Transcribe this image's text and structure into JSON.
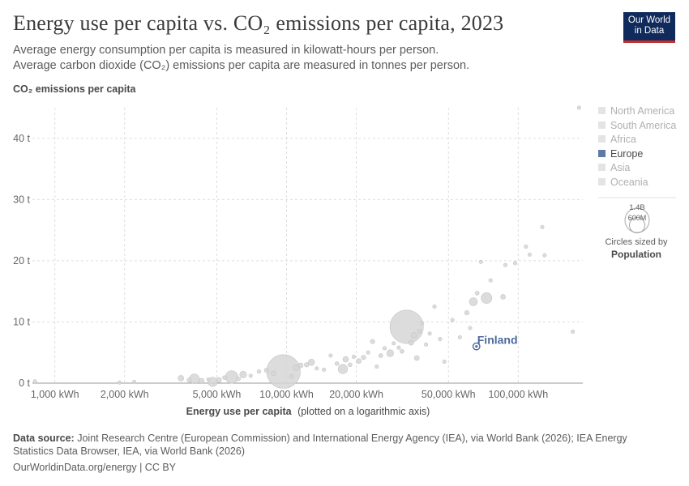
{
  "header": {
    "title": "Energy use per capita vs. CO₂ emissions per capita, 2023",
    "subtitle_line1": "Average energy consumption per capita is measured in kilowatt-hours per person.",
    "subtitle_line2": "Average carbon dioxide (CO₂) emissions per capita are measured in tonnes per person.",
    "logo_line1": "Our World",
    "logo_line2": "in Data"
  },
  "legend": {
    "regions": [
      {
        "name": "North America",
        "color": "#d0d0d0",
        "active": false
      },
      {
        "name": "South America",
        "color": "#d0d0d0",
        "active": false
      },
      {
        "name": "Africa",
        "color": "#d0d0d0",
        "active": false
      },
      {
        "name": "Europe",
        "color": "#5f7aa8",
        "active": true
      },
      {
        "name": "Asia",
        "color": "#d0d0d0",
        "active": false
      },
      {
        "name": "Oceania",
        "color": "#d0d0d0",
        "active": false
      }
    ],
    "size_large": "1.4B",
    "size_small": "600M",
    "size_caption1": "Circles sized by",
    "size_caption2": "Population"
  },
  "footer": {
    "source_label": "Data source:",
    "source_text": "Joint Research Centre (European Commission) and International Energy Agency (IEA), via World Bank (2026); IEA Energy Statistics Data Browser, IEA, via World Bank (2026)",
    "url": "OurWorldinData.org/energy | CC BY"
  },
  "chart_data": {
    "type": "scatter",
    "title": "Energy use per capita vs. CO₂ emissions per capita, 2023",
    "xlabel": "Energy use per capita",
    "xlabel_note": "(plotted on a logarithmic axis)",
    "ylabel": "CO₂ emissions per capita",
    "x_scale": "log",
    "xlim": [
      800,
      190000
    ],
    "ylim": [
      0,
      45
    ],
    "x_ticks": [
      {
        "value": 1000,
        "label": "1,000 kWh"
      },
      {
        "value": 2000,
        "label": "2,000 kWh"
      },
      {
        "value": 5000,
        "label": "5,000 kWh"
      },
      {
        "value": 10000,
        "label": "10,000 kWh"
      },
      {
        "value": 20000,
        "label": "20,000 kWh"
      },
      {
        "value": 50000,
        "label": "50,000 kWh"
      },
      {
        "value": 100000,
        "label": "100,000 kWh"
      }
    ],
    "y_ticks": [
      {
        "value": 0,
        "label": "0 t"
      },
      {
        "value": 10,
        "label": "10 t"
      },
      {
        "value": 20,
        "label": "20 t"
      },
      {
        "value": 30,
        "label": "30 t"
      },
      {
        "value": 40,
        "label": "40 t"
      }
    ],
    "grid": true,
    "highlight": {
      "name": "Finland",
      "x": 66000,
      "y": 6.0,
      "pop": 5.6,
      "color": "#4c6a9c"
    },
    "points": [
      {
        "x": 820,
        "y": 0.3,
        "pop": 10
      },
      {
        "x": 1900,
        "y": 0.1,
        "pop": 10
      },
      {
        "x": 2200,
        "y": 0.2,
        "pop": 8
      },
      {
        "x": 3500,
        "y": 0.8,
        "pop": 40
      },
      {
        "x": 3800,
        "y": 0.5,
        "pop": 25
      },
      {
        "x": 4000,
        "y": 0.7,
        "pop": 120
      },
      {
        "x": 4300,
        "y": 0.4,
        "pop": 30
      },
      {
        "x": 4600,
        "y": 0.6,
        "pop": 15
      },
      {
        "x": 4800,
        "y": 0.2,
        "pop": 110
      },
      {
        "x": 5100,
        "y": 0.5,
        "pop": 35
      },
      {
        "x": 5400,
        "y": 0.9,
        "pop": 20
      },
      {
        "x": 5800,
        "y": 1.0,
        "pop": 200
      },
      {
        "x": 6200,
        "y": 0.7,
        "pop": 20
      },
      {
        "x": 6500,
        "y": 1.4,
        "pop": 60
      },
      {
        "x": 7000,
        "y": 1.2,
        "pop": 12
      },
      {
        "x": 7600,
        "y": 1.9,
        "pop": 18
      },
      {
        "x": 8200,
        "y": 2.1,
        "pop": 25
      },
      {
        "x": 8800,
        "y": 1.6,
        "pop": 30
      },
      {
        "x": 9700,
        "y": 1.9,
        "pop": 1430
      },
      {
        "x": 10500,
        "y": 1.1,
        "pop": 20
      },
      {
        "x": 11000,
        "y": 2.5,
        "pop": 40
      },
      {
        "x": 11500,
        "y": 2.9,
        "pop": 30
      },
      {
        "x": 12200,
        "y": 3.0,
        "pop": 25
      },
      {
        "x": 12800,
        "y": 3.4,
        "pop": 50
      },
      {
        "x": 13500,
        "y": 2.4,
        "pop": 15
      },
      {
        "x": 14500,
        "y": 2.2,
        "pop": 10
      },
      {
        "x": 15500,
        "y": 4.5,
        "pop": 12
      },
      {
        "x": 16500,
        "y": 3.2,
        "pop": 20
      },
      {
        "x": 17500,
        "y": 2.3,
        "pop": 110
      },
      {
        "x": 18000,
        "y": 3.9,
        "pop": 40
      },
      {
        "x": 18800,
        "y": 3.0,
        "pop": 20
      },
      {
        "x": 19500,
        "y": 4.3,
        "pop": 15
      },
      {
        "x": 20500,
        "y": 3.6,
        "pop": 30
      },
      {
        "x": 21500,
        "y": 4.2,
        "pop": 25
      },
      {
        "x": 22500,
        "y": 5.0,
        "pop": 10
      },
      {
        "x": 23500,
        "y": 6.8,
        "pop": 25
      },
      {
        "x": 24500,
        "y": 2.7,
        "pop": 8
      },
      {
        "x": 25500,
        "y": 4.5,
        "pop": 20
      },
      {
        "x": 26500,
        "y": 5.7,
        "pop": 12
      },
      {
        "x": 28000,
        "y": 4.9,
        "pop": 60
      },
      {
        "x": 29000,
        "y": 6.5,
        "pop": 15
      },
      {
        "x": 30500,
        "y": 5.8,
        "pop": 10
      },
      {
        "x": 31500,
        "y": 5.2,
        "pop": 20
      },
      {
        "x": 33000,
        "y": 9.2,
        "pop": 1410
      },
      {
        "x": 34500,
        "y": 6.6,
        "pop": 30
      },
      {
        "x": 35500,
        "y": 7.8,
        "pop": 40
      },
      {
        "x": 36500,
        "y": 4.1,
        "pop": 30
      },
      {
        "x": 37500,
        "y": 8.5,
        "pop": 20
      },
      {
        "x": 38500,
        "y": 9.8,
        "pop": 15
      },
      {
        "x": 40000,
        "y": 6.3,
        "pop": 10
      },
      {
        "x": 41500,
        "y": 8.1,
        "pop": 12
      },
      {
        "x": 43500,
        "y": 12.5,
        "pop": 8
      },
      {
        "x": 46000,
        "y": 7.2,
        "pop": 10
      },
      {
        "x": 48000,
        "y": 3.5,
        "pop": 10
      },
      {
        "x": 52000,
        "y": 10.3,
        "pop": 10
      },
      {
        "x": 56000,
        "y": 7.5,
        "pop": 12
      },
      {
        "x": 60000,
        "y": 11.5,
        "pop": 25
      },
      {
        "x": 62000,
        "y": 9.0,
        "pop": 15
      },
      {
        "x": 64000,
        "y": 13.3,
        "pop": 80
      },
      {
        "x": 66500,
        "y": 14.7,
        "pop": 20
      },
      {
        "x": 69000,
        "y": 19.8,
        "pop": 8
      },
      {
        "x": 73000,
        "y": 13.9,
        "pop": 145
      },
      {
        "x": 76000,
        "y": 16.8,
        "pop": 8
      },
      {
        "x": 86000,
        "y": 14.1,
        "pop": 30
      },
      {
        "x": 88000,
        "y": 19.3,
        "pop": 10
      },
      {
        "x": 97000,
        "y": 19.6,
        "pop": 12
      },
      {
        "x": 108000,
        "y": 22.3,
        "pop": 8
      },
      {
        "x": 112000,
        "y": 21.0,
        "pop": 10
      },
      {
        "x": 127000,
        "y": 25.5,
        "pop": 8
      },
      {
        "x": 130000,
        "y": 20.9,
        "pop": 8
      },
      {
        "x": 172000,
        "y": 8.4,
        "pop": 8
      },
      {
        "x": 183000,
        "y": 45.0,
        "pop": 8
      }
    ]
  }
}
